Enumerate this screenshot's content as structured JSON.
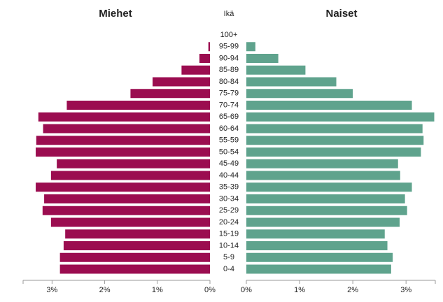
{
  "chart_data": {
    "type": "pyramid",
    "ylabel": "Ikä",
    "categories": [
      "0-4",
      "5-9",
      "10-14",
      "15-19",
      "20-24",
      "25-29",
      "30-34",
      "35-39",
      "40-44",
      "45-49",
      "50-54",
      "55-59",
      "60-64",
      "65-69",
      "70-74",
      "75-79",
      "80-84",
      "85-89",
      "90-94",
      "95-99",
      "100+"
    ],
    "series": [
      {
        "name": "Miehet",
        "color": "#9b0d50",
        "side": "left",
        "values": [
          2.85,
          2.85,
          2.78,
          2.75,
          3.02,
          3.18,
          3.15,
          3.31,
          3.02,
          2.91,
          3.31,
          3.3,
          3.17,
          3.26,
          2.72,
          1.51,
          1.09,
          0.54,
          0.2,
          0.03,
          0
        ]
      },
      {
        "name": "Naiset",
        "color": "#5fa38d",
        "side": "right",
        "values": [
          2.72,
          2.75,
          2.65,
          2.6,
          2.88,
          3.02,
          2.98,
          3.11,
          2.89,
          2.85,
          3.28,
          3.33,
          3.31,
          3.53,
          3.11,
          2.0,
          1.69,
          1.11,
          0.6,
          0.17,
          0
        ]
      }
    ],
    "xlim": [
      0,
      3.55
    ],
    "xticks": [
      {
        "value": 0,
        "label": "0%"
      },
      {
        "value": 1,
        "label": "1%"
      },
      {
        "value": 2,
        "label": "2%"
      },
      {
        "value": 3,
        "label": "3%"
      }
    ]
  }
}
